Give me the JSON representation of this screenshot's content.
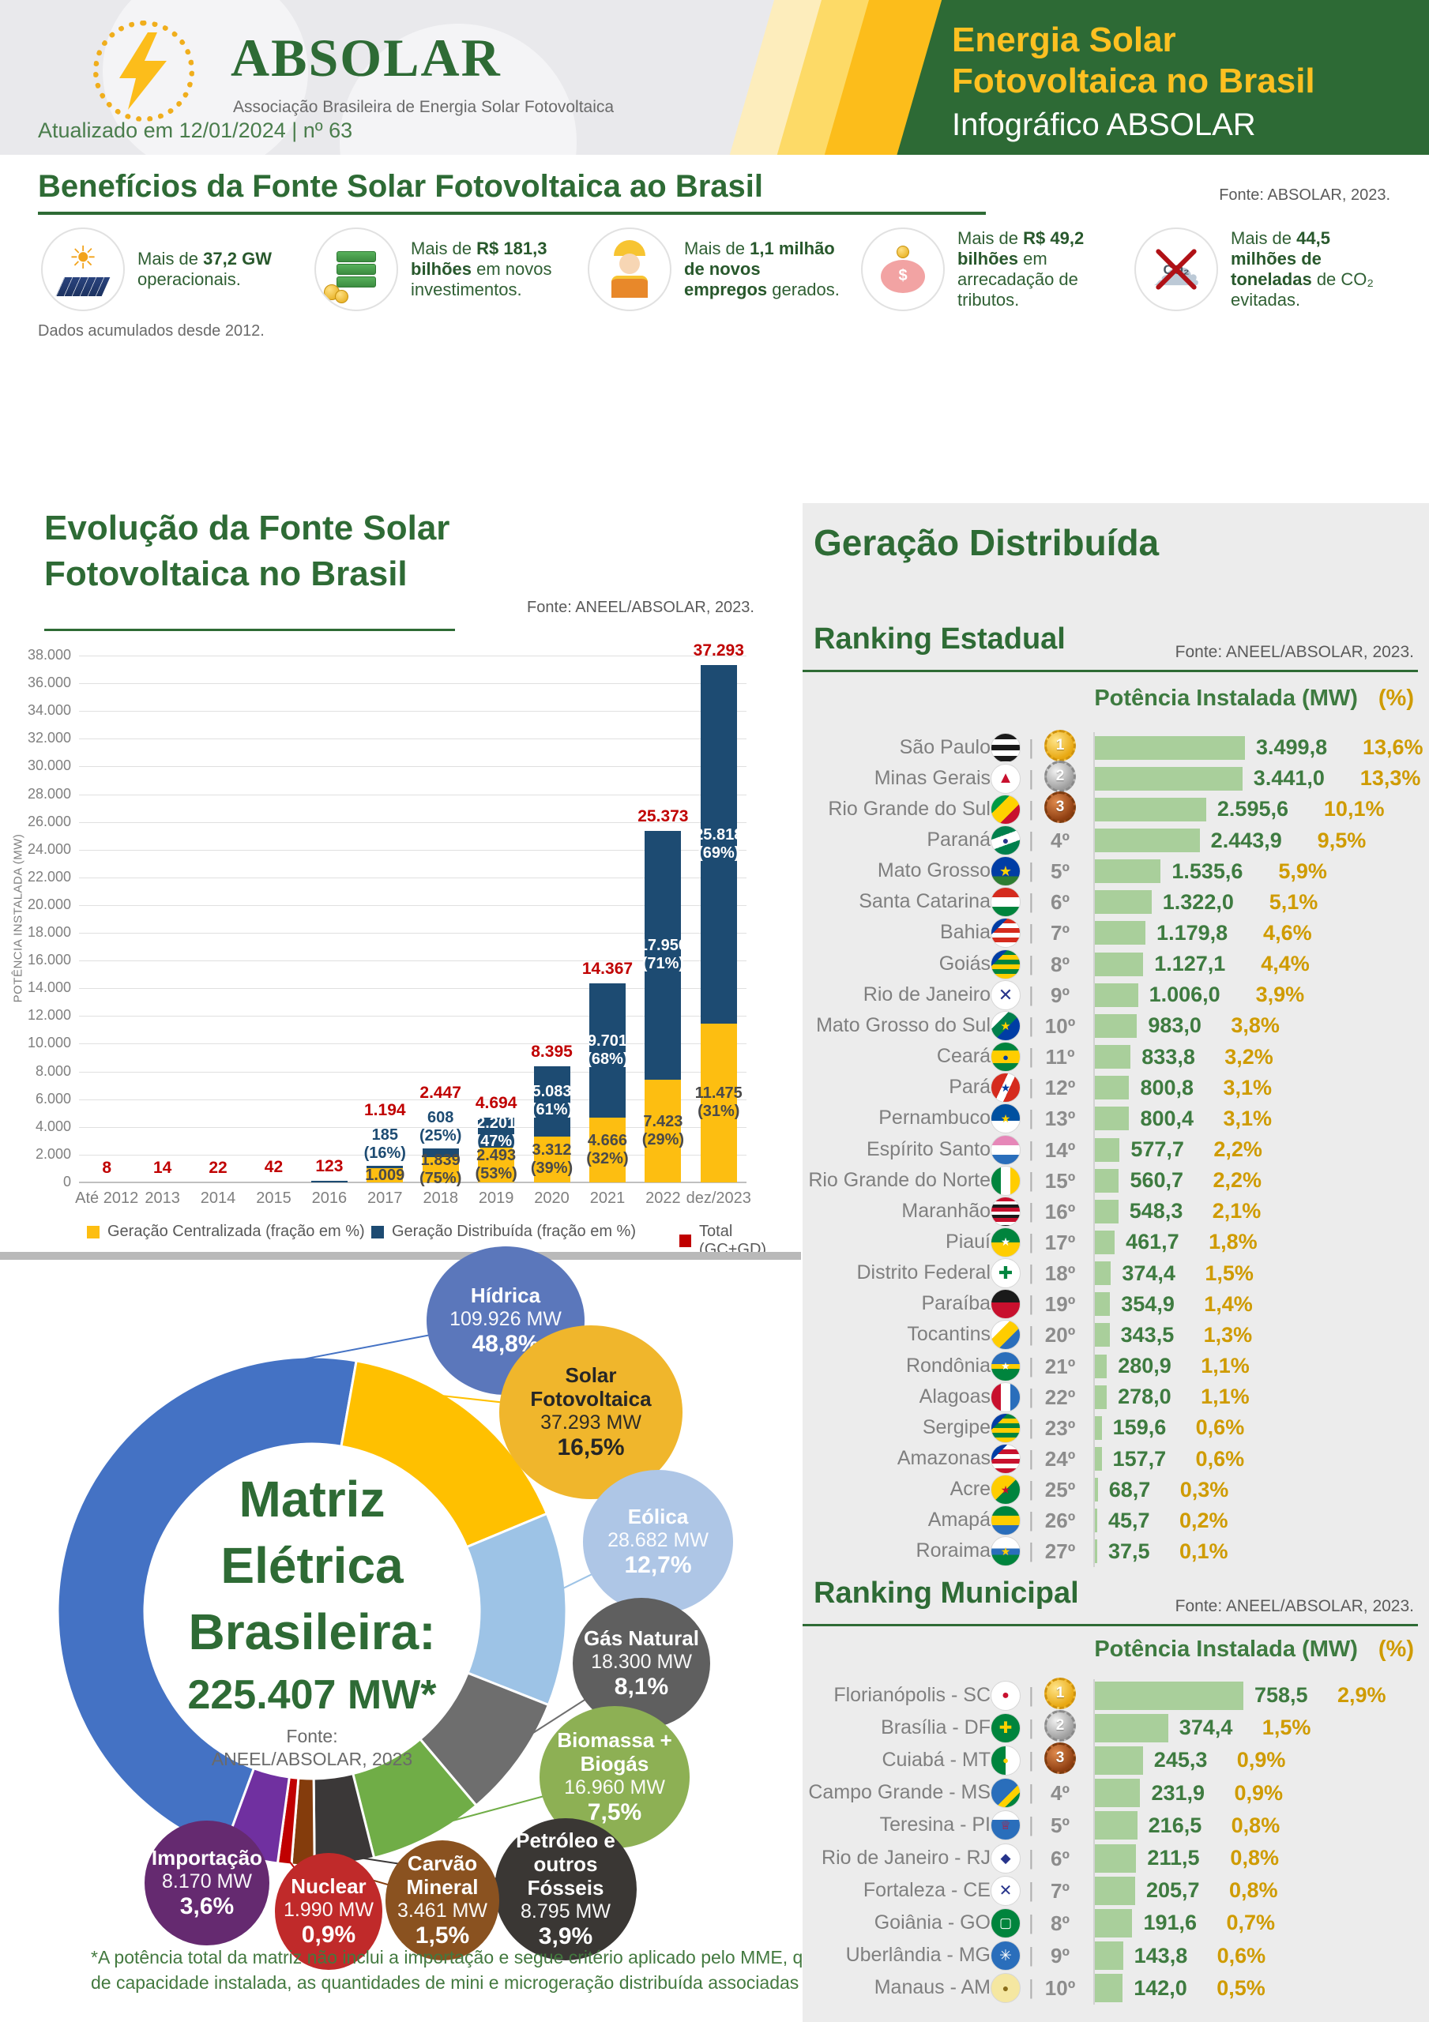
{
  "header": {
    "brand": "ABSOLAR",
    "brand_subtitle": "Associação Brasileira de Energia Solar Fotovoltaica",
    "updated": "Atualizado em 12/01/2024 | nº 63",
    "title_line1": "Energia Solar",
    "title_line2": "Fotovoltaica no Brasil",
    "title_line3": "Infográfico ABSOLAR"
  },
  "benefits": {
    "title": "Benefícios da Fonte Solar Fotovoltaica ao Brasil",
    "source": "Fonte: ABSOLAR, 2023.",
    "note": "Dados acumulados desde 2012.",
    "items": [
      {
        "icon": "sun-panel-icon",
        "segments": [
          {
            "t": "Mais de ",
            "b": false
          },
          {
            "t": "37,2 GW",
            "b": true
          },
          {
            "t": " operacionais.",
            "b": false
          }
        ]
      },
      {
        "icon": "money-stack-icon",
        "segments": [
          {
            "t": "Mais de ",
            "b": false
          },
          {
            "t": "R$ 181,3 bilhões",
            "b": true
          },
          {
            "t": " em novos investimentos.",
            "b": false
          }
        ]
      },
      {
        "icon": "worker-icon",
        "segments": [
          {
            "t": "Mais de ",
            "b": false
          },
          {
            "t": "1,1 milhão de novos empregos",
            "b": true
          },
          {
            "t": " gerados.",
            "b": false
          }
        ]
      },
      {
        "icon": "piggy-bank-icon",
        "segments": [
          {
            "t": "Mais de ",
            "b": false
          },
          {
            "t": "R$ 49,2 bilhões",
            "b": true
          },
          {
            "t": " em arrecadação de tributos.",
            "b": false
          }
        ]
      },
      {
        "icon": "co2-cloud-icon",
        "segments": [
          {
            "t": "Mais de ",
            "b": false
          },
          {
            "t": "44,5 milhões de toneladas",
            "b": true
          },
          {
            "t": " de CO₂ evitadas.",
            "b": false
          }
        ]
      }
    ]
  },
  "chart_data": [
    {
      "id": "evolution",
      "type": "bar",
      "stacked": true,
      "title_line1": "Evolução da Fonte Solar",
      "title_line2": "Fotovoltaica no Brasil",
      "source": "Fonte: ANEEL/ABSOLAR, 2023.",
      "ylabel": "POTÊNCIA INSTALADA (MW)",
      "ylim": [
        0,
        38000
      ],
      "ytick_step": 2000,
      "categories": [
        "Até 2012",
        "2013",
        "2014",
        "2015",
        "2016",
        "2017",
        "2018",
        "2019",
        "2020",
        "2021",
        "2022",
        "dez/2023"
      ],
      "totals": [
        "8",
        "14",
        "22",
        "42",
        "123",
        "1.194",
        "2.447",
        "4.694",
        "8.395",
        "14.367",
        "25.373",
        "37.293"
      ],
      "gd": [
        null,
        null,
        null,
        null,
        null,
        {
          "mw": "185",
          "pct": "(16%)"
        },
        {
          "mw": "608",
          "pct": "(25%)"
        },
        {
          "mw": "2.201",
          "pct": "(47%)"
        },
        {
          "mw": "5.083",
          "pct": "(61%)"
        },
        {
          "mw": "9.701",
          "pct": "(68%)"
        },
        {
          "mw": "17.950",
          "pct": "(71%)"
        },
        {
          "mw": "25.818",
          "pct": "(69%)"
        }
      ],
      "gc": [
        null,
        null,
        null,
        null,
        null,
        {
          "mw": "1.009",
          "pct": null
        },
        {
          "mw": "1.839",
          "pct": "(75%)"
        },
        {
          "mw": "2.493",
          "pct": "(53%)"
        },
        {
          "mw": "3.312",
          "pct": "(39%)"
        },
        {
          "mw": "4.666",
          "pct": "(32%)"
        },
        {
          "mw": "7.423",
          "pct": "(29%)"
        },
        {
          "mw": "11.475",
          "pct": "(31%)"
        }
      ],
      "legend": [
        {
          "label": "Geração Centralizada (fração em %)",
          "color": "#fdbe11"
        },
        {
          "label": "Geração Distribuída (fração em %)",
          "color": "#1d4b72"
        },
        {
          "label": "Total (GC+GD)",
          "color": "#c00000"
        }
      ],
      "total_label_color": "#c00000"
    },
    {
      "id": "matriz",
      "type": "pie",
      "center_line1": "Matriz",
      "center_line2": "Elétrica",
      "center_line3": "Brasileira:",
      "center_total": "225.407 MW*",
      "center_source1": "Fonte:",
      "center_source2": "ANEEL/ABSOLAR, 2023",
      "footnote": "*A potência total da matriz não inclui a importação e segue critério aplicado pelo MME, que adiciona, nos valores de capacidade instalada, as quantidades de mini e microgeração distribuída associadas a cada tipo de fonte.",
      "slices": [
        {
          "label": "Hídrica",
          "mw": "109.926 MW",
          "pct": "48,8%",
          "color": "#4472c4",
          "bubble_color": "#5b77bb",
          "text_color": "#ffffff"
        },
        {
          "label": "Solar Fotovoltaica",
          "mw": "37.293 MW",
          "pct": "16,5%",
          "color": "#ffc000",
          "bubble_color": "#f0b62c",
          "text_color": "#262626"
        },
        {
          "label": "Eólica",
          "mw": "28.682 MW",
          "pct": "12,7%",
          "color": "#9dc3e6",
          "bubble_color": "#aec6e6",
          "text_color": "#ffffff"
        },
        {
          "label": "Gás Natural",
          "mw": "18.300 MW",
          "pct": "8,1%",
          "color": "#6e6e6e",
          "bubble_color": "#5f5f5f",
          "text_color": "#ffffff"
        },
        {
          "label": "Biomassa + Biogás",
          "mw": "16.960 MW",
          "pct": "7,5%",
          "color": "#70ad47",
          "bubble_color": "#8db054",
          "text_color": "#ffffff"
        },
        {
          "label": "Petróleo e outros Fósseis",
          "mw": "8.795 MW",
          "pct": "3,9%",
          "color": "#3b3838",
          "bubble_color": "#3a3734",
          "text_color": "#ffffff"
        },
        {
          "label": "Carvão Mineral",
          "mw": "3.461 MW",
          "pct": "1,5%",
          "color": "#843c0c",
          "bubble_color": "#8a5220",
          "text_color": "#ffffff"
        },
        {
          "label": "Nuclear",
          "mw": "1.990 MW",
          "pct": "0,9%",
          "color": "#c00000",
          "bubble_color": "#c02a2a",
          "text_color": "#ffffff"
        },
        {
          "label": "Importação",
          "mw": "8.170 MW",
          "pct": "3,6%",
          "color": "#7030a0",
          "bubble_color": "#652a70",
          "text_color": "#ffffff"
        }
      ]
    },
    {
      "id": "ranking_estadual",
      "type": "bar",
      "panel_title": "Geração Distribuída",
      "title": "Ranking Estadual",
      "source": "Fonte: ANEEL/ABSOLAR, 2023.",
      "col_mw": "Potência Instalada (MW)",
      "col_pct": "(%)",
      "bar_color": "#a9cf9b",
      "rows": [
        {
          "name": "São Paulo",
          "rank": "1º",
          "medal": 1,
          "mw": "3.499,8",
          "pct": "13,6%"
        },
        {
          "name": "Minas Gerais",
          "rank": "2º",
          "medal": 2,
          "mw": "3.441,0",
          "pct": "13,3%"
        },
        {
          "name": "Rio Grande do Sul",
          "rank": "3º",
          "medal": 3,
          "mw": "2.595,6",
          "pct": "10,1%"
        },
        {
          "name": "Paraná",
          "rank": "4º",
          "medal": null,
          "mw": "2.443,9",
          "pct": "9,5%"
        },
        {
          "name": "Mato Grosso",
          "rank": "5º",
          "medal": null,
          "mw": "1.535,6",
          "pct": "5,9%"
        },
        {
          "name": "Santa Catarina",
          "rank": "6º",
          "medal": null,
          "mw": "1.322,0",
          "pct": "5,1%"
        },
        {
          "name": "Bahia",
          "rank": "7º",
          "medal": null,
          "mw": "1.179,8",
          "pct": "4,6%"
        },
        {
          "name": "Goiás",
          "rank": "8º",
          "medal": null,
          "mw": "1.127,1",
          "pct": "4,4%"
        },
        {
          "name": "Rio de Janeiro",
          "rank": "9º",
          "medal": null,
          "mw": "1.006,0",
          "pct": "3,9%"
        },
        {
          "name": "Mato Grosso do Sul",
          "rank": "10º",
          "medal": null,
          "mw": "983,0",
          "pct": "3,8%"
        },
        {
          "name": "Ceará",
          "rank": "11º",
          "medal": null,
          "mw": "833,8",
          "pct": "3,2%"
        },
        {
          "name": "Pará",
          "rank": "12º",
          "medal": null,
          "mw": "800,8",
          "pct": "3,1%"
        },
        {
          "name": "Pernambuco",
          "rank": "13º",
          "medal": null,
          "mw": "800,4",
          "pct": "3,1%"
        },
        {
          "name": "Espírito Santo",
          "rank": "14º",
          "medal": null,
          "mw": "577,7",
          "pct": "2,2%"
        },
        {
          "name": "Rio Grande do Norte",
          "rank": "15º",
          "medal": null,
          "mw": "560,7",
          "pct": "2,2%"
        },
        {
          "name": "Maranhão",
          "rank": "16º",
          "medal": null,
          "mw": "548,3",
          "pct": "2,1%"
        },
        {
          "name": "Piauí",
          "rank": "17º",
          "medal": null,
          "mw": "461,7",
          "pct": "1,8%"
        },
        {
          "name": "Distrito Federal",
          "rank": "18º",
          "medal": null,
          "mw": "374,4",
          "pct": "1,5%"
        },
        {
          "name": "Paraíba",
          "rank": "19º",
          "medal": null,
          "mw": "354,9",
          "pct": "1,4%"
        },
        {
          "name": "Tocantins",
          "rank": "20º",
          "medal": null,
          "mw": "343,5",
          "pct": "1,3%"
        },
        {
          "name": "Rondônia",
          "rank": "21º",
          "medal": null,
          "mw": "280,9",
          "pct": "1,1%"
        },
        {
          "name": "Alagoas",
          "rank": "22º",
          "medal": null,
          "mw": "278,0",
          "pct": "1,1%"
        },
        {
          "name": "Sergipe",
          "rank": "23º",
          "medal": null,
          "mw": "159,6",
          "pct": "0,6%"
        },
        {
          "name": "Amazonas",
          "rank": "24º",
          "medal": null,
          "mw": "157,7",
          "pct": "0,6%"
        },
        {
          "name": "Acre",
          "rank": "25º",
          "medal": null,
          "mw": "68,7",
          "pct": "0,3%"
        },
        {
          "name": "Amapá",
          "rank": "26º",
          "medal": null,
          "mw": "45,7",
          "pct": "0,2%"
        },
        {
          "name": "Roraima",
          "rank": "27º",
          "medal": null,
          "mw": "37,5",
          "pct": "0,1%"
        }
      ]
    },
    {
      "id": "ranking_municipal",
      "type": "bar",
      "title": "Ranking Municipal",
      "source": "Fonte: ANEEL/ABSOLAR, 2023.",
      "col_mw": "Potência Instalada (MW)",
      "col_pct": "(%)",
      "bar_color": "#a9cf9b",
      "rows": [
        {
          "name": "Florianópolis - SC",
          "rank": "1º",
          "medal": 1,
          "mw": "758,5",
          "pct": "2,9%"
        },
        {
          "name": "Brasília - DF",
          "rank": "2º",
          "medal": 2,
          "mw": "374,4",
          "pct": "1,5%"
        },
        {
          "name": "Cuiabá - MT",
          "rank": "3º",
          "medal": 3,
          "mw": "245,3",
          "pct": "0,9%"
        },
        {
          "name": "Campo Grande - MS",
          "rank": "4º",
          "medal": null,
          "mw": "231,9",
          "pct": "0,9%"
        },
        {
          "name": "Teresina - PI",
          "rank": "5º",
          "medal": null,
          "mw": "216,5",
          "pct": "0,8%"
        },
        {
          "name": "Rio de Janeiro - RJ",
          "rank": "6º",
          "medal": null,
          "mw": "211,5",
          "pct": "0,8%"
        },
        {
          "name": "Fortaleza - CE",
          "rank": "7º",
          "medal": null,
          "mw": "205,7",
          "pct": "0,8%"
        },
        {
          "name": "Goiânia - GO",
          "rank": "8º",
          "medal": null,
          "mw": "191,6",
          "pct": "0,7%"
        },
        {
          "name": "Uberlândia - MG",
          "rank": "9º",
          "medal": null,
          "mw": "143,8",
          "pct": "0,6%"
        },
        {
          "name": "Manaus - AM",
          "rank": "10º",
          "medal": null,
          "mw": "142,0",
          "pct": "0,5%"
        }
      ]
    }
  ]
}
